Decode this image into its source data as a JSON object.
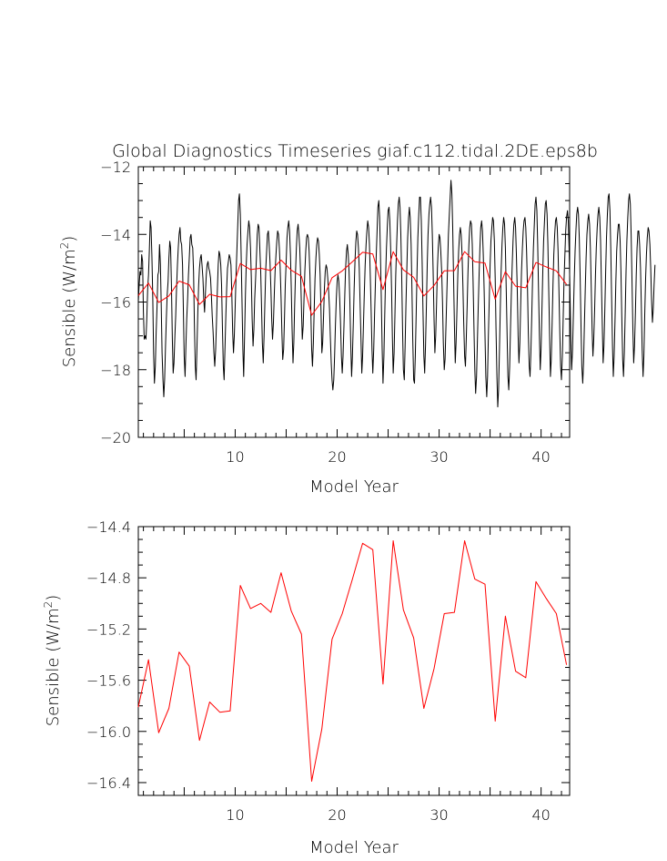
{
  "title": "Global Diagnostics Timeseries giaf.c112.tidal.2DE.eps8b",
  "chart_data": [
    {
      "type": "line",
      "xlabel": "Model Year",
      "ylabel_main": "Sensible (W/m",
      "ylabel_sup": "2",
      "ylabel_end": ")",
      "xlim": [
        0.5,
        42.8
      ],
      "ylim": [
        -20,
        -12
      ],
      "xticks": [
        10,
        20,
        30,
        40
      ],
      "yticks": [
        -20,
        -18,
        -16,
        -14,
        -12
      ],
      "ytick_labels": [
        "−20",
        "−18",
        "−16",
        "−14",
        "−12"
      ],
      "series": [
        {
          "color": "#000000",
          "description": "monthly",
          "x_start": 0.5,
          "x_step": 0.0833333,
          "values": [
            -16.0,
            -15.5,
            -15.1,
            -15.2,
            -14.6,
            -14.8,
            -16.3,
            -17.1,
            -17.0,
            -17.1,
            -16.5,
            -15.6,
            -15.2,
            -14.5,
            -13.6,
            -13.8,
            -14.6,
            -15.9,
            -17.5,
            -18.4,
            -17.9,
            -16.9,
            -16.2,
            -15.2,
            -15.1,
            -14.3,
            -14.9,
            -16.1,
            -17.5,
            -18.3,
            -18.8,
            -18.3,
            -17.3,
            -16.5,
            -15.8,
            -15.4,
            -14.7,
            -14.2,
            -14.4,
            -15.5,
            -17.1,
            -18.1,
            -17.8,
            -17.0,
            -16.4,
            -15.6,
            -14.9,
            -14.4,
            -14.0,
            -13.8,
            -14.2,
            -14.3,
            -14.9,
            -16.2,
            -17.6,
            -18.2,
            -17.3,
            -16.5,
            -15.9,
            -15.2,
            -14.7,
            -14.1,
            -14.0,
            -14.3,
            -14.4,
            -15.1,
            -16.6,
            -17.9,
            -18.3,
            -17.4,
            -16.3,
            -15.5,
            -15.0,
            -14.7,
            -14.6,
            -14.9,
            -15.3,
            -15.9,
            -16.3,
            -15.7,
            -15.2,
            -14.9,
            -14.8,
            -15.0,
            -15.1,
            -15.3,
            -15.8,
            -16.4,
            -16.9,
            -17.5,
            -17.9,
            -17.4,
            -16.6,
            -15.7,
            -14.9,
            -14.5,
            -14.6,
            -14.9,
            -15.5,
            -16.7,
            -17.9,
            -18.3,
            -17.4,
            -16.4,
            -15.6,
            -15.0,
            -14.8,
            -14.6,
            -14.7,
            -14.9,
            -15.7,
            -16.9,
            -17.5,
            -17.0,
            -16.1,
            -15.2,
            -14.5,
            -13.7,
            -13.0,
            -12.8,
            -13.4,
            -14.6,
            -15.9,
            -17.4,
            -18.2,
            -17.1,
            -15.8,
            -14.9,
            -14.3,
            -13.9,
            -13.6,
            -13.8,
            -14.4,
            -15.3,
            -16.5,
            -17.3,
            -16.8,
            -15.9,
            -15.3,
            -14.7,
            -14.0,
            -13.7,
            -13.8,
            -14.4,
            -15.1,
            -16.1,
            -17.2,
            -17.8,
            -17.0,
            -16.0,
            -15.0,
            -14.5,
            -14.0,
            -13.9,
            -14.3,
            -14.8,
            -15.6,
            -16.5,
            -17.1,
            -16.6,
            -15.8,
            -15.1,
            -14.6,
            -14.2,
            -13.9,
            -14.0,
            -14.4,
            -15.0,
            -15.9,
            -16.9,
            -17.7,
            -17.4,
            -16.5,
            -15.5,
            -14.8,
            -14.1,
            -13.8,
            -13.6,
            -13.9,
            -14.6,
            -15.6,
            -16.8,
            -17.8,
            -17.2,
            -16.1,
            -15.1,
            -14.4,
            -13.9,
            -13.7,
            -14.0,
            -14.4,
            -15.2,
            -16.2,
            -17.1,
            -16.7,
            -15.9,
            -15.1,
            -14.5,
            -14.1,
            -14.0,
            -14.1,
            -14.5,
            -15.2,
            -16.3,
            -17.4,
            -17.9,
            -17.2,
            -16.2,
            -15.3,
            -14.7,
            -14.3,
            -14.1,
            -14.2,
            -14.6,
            -15.2,
            -16.3,
            -17.5,
            -17.2,
            -16.4,
            -15.6,
            -15.1,
            -14.9,
            -15.0,
            -15.3,
            -15.7,
            -16.2,
            -17.0,
            -17.8,
            -18.3,
            -18.6,
            -18.3,
            -17.6,
            -16.7,
            -15.9,
            -15.4,
            -15.2,
            -15.4,
            -15.9,
            -16.6,
            -17.6,
            -18.1,
            -17.6,
            -16.7,
            -15.8,
            -15.0,
            -14.5,
            -14.3,
            -14.6,
            -15.1,
            -16.0,
            -17.3,
            -18.2,
            -17.6,
            -16.6,
            -15.6,
            -14.8,
            -14.2,
            -13.9,
            -14.0,
            -14.4,
            -15.0,
            -16.0,
            -17.1,
            -18.1,
            -17.6,
            -16.6,
            -15.7,
            -14.9,
            -14.3,
            -13.9,
            -13.6,
            -13.8,
            -14.3,
            -15.2,
            -16.3,
            -17.4,
            -18.1,
            -17.4,
            -16.4,
            -15.5,
            -14.6,
            -13.9,
            -13.2,
            -13.0,
            -13.5,
            -14.6,
            -16.0,
            -17.4,
            -18.4,
            -17.6,
            -16.4,
            -15.3,
            -14.4,
            -13.8,
            -13.3,
            -13.2,
            -13.6,
            -14.4,
            -15.6,
            -17.0,
            -18.1,
            -17.5,
            -16.4,
            -15.2,
            -14.3,
            -13.6,
            -13.1,
            -12.9,
            -13.2,
            -14.0,
            -15.3,
            -16.8,
            -18.0,
            -18.3,
            -17.3,
            -16.1,
            -15.0,
            -14.1,
            -13.5,
            -13.2,
            -13.5,
            -14.3,
            -15.6,
            -17.1,
            -18.3,
            -18.4,
            -17.6,
            -16.3,
            -15.1,
            -14.1,
            -13.4,
            -12.9,
            -12.9,
            -13.6,
            -14.8,
            -16.2,
            -17.6,
            -18.1,
            -17.3,
            -16.1,
            -14.9,
            -14.0,
            -13.4,
            -13.1,
            -12.9,
            -13.2,
            -14.0,
            -15.1,
            -16.5,
            -17.5,
            -17.0,
            -16.0,
            -15.0,
            -14.4,
            -14.0,
            -14.1,
            -14.5,
            -15.1,
            -16.0,
            -17.2,
            -18.0,
            -17.7,
            -16.8,
            -15.8,
            -14.9,
            -14.0,
            -13.4,
            -12.9,
            -12.4,
            -12.8,
            -13.8,
            -15.2,
            -16.7,
            -17.8,
            -17.2,
            -16.2,
            -15.2,
            -14.5,
            -14.0,
            -13.8,
            -14.0,
            -14.6,
            -15.5,
            -16.6,
            -17.6,
            -17.9,
            -17.1,
            -16.1,
            -15.1,
            -14.3,
            -13.8,
            -13.6,
            -13.7,
            -14.3,
            -15.4,
            -16.8,
            -18.0,
            -18.7,
            -18.2,
            -17.2,
            -16.2,
            -15.2,
            -14.4,
            -13.8,
            -13.6,
            -13.9,
            -14.6,
            -15.7,
            -17.0,
            -18.2,
            -18.8,
            -18.2,
            -17.0,
            -15.9,
            -14.9,
            -14.2,
            -13.8,
            -13.5,
            -13.6,
            -14.2,
            -15.3,
            -16.8,
            -18.2,
            -19.1,
            -18.6,
            -17.4,
            -16.2,
            -15.1,
            -14.3,
            -13.8,
            -13.5,
            -13.7,
            -14.4,
            -15.6,
            -17.0,
            -18.2,
            -18.6,
            -17.9,
            -16.8,
            -15.8,
            -14.9,
            -14.2,
            -13.7,
            -13.5,
            -13.8,
            -14.6,
            -15.7,
            -17.0,
            -17.8,
            -17.2,
            -16.1,
            -15.1,
            -14.4,
            -13.9,
            -13.6,
            -13.5,
            -13.8,
            -14.5,
            -15.6,
            -16.9,
            -17.9,
            -18.2,
            -17.5,
            -16.4,
            -15.3,
            -14.4,
            -13.7,
            -13.1,
            -12.9,
            -13.3,
            -14.3,
            -15.6,
            -17.0,
            -18.0,
            -17.4,
            -16.2,
            -15.1,
            -14.2,
            -13.6,
            -13.1,
            -13.0,
            -13.4,
            -14.3,
            -15.6,
            -17.0,
            -18.2,
            -17.7,
            -16.6,
            -15.5,
            -14.6,
            -14.0,
            -13.6,
            -13.5,
            -13.8,
            -14.5,
            -15.6,
            -16.9,
            -17.9,
            -18.3,
            -17.6,
            -16.5,
            -15.4,
            -14.6,
            -13.9,
            -13.5,
            -13.3,
            -13.6,
            -14.4,
            -15.7,
            -17.1,
            -18.0,
            -17.4,
            -16.4,
            -15.4,
            -14.5,
            -13.9,
            -13.4,
            -13.2,
            -13.4,
            -14.1,
            -15.3,
            -16.7,
            -17.9,
            -18.4,
            -17.8,
            -16.7,
            -15.6,
            -14.7,
            -14.0,
            -13.6,
            -13.4,
            -13.7,
            -14.4,
            -15.5,
            -16.8,
            -17.6,
            -17.1,
            -16.2,
            -15.2,
            -14.4,
            -13.8,
            -13.4,
            -13.2,
            -13.5,
            -14.2,
            -15.4,
            -16.7,
            -17.8,
            -17.3,
            -16.2,
            -15.1,
            -14.1,
            -13.4,
            -12.9,
            -12.8,
            -13.3,
            -14.4,
            -15.8,
            -17.3,
            -18.2,
            -17.6,
            -16.5,
            -15.4,
            -14.5,
            -14.0,
            -13.7,
            -13.7,
            -14.2,
            -15.1,
            -16.4,
            -17.7,
            -18.2,
            -17.5,
            -16.3,
            -15.1,
            -14.2,
            -13.5,
            -13.0,
            -12.8,
            -13.1,
            -14.0,
            -15.3,
            -16.8,
            -17.8,
            -17.3,
            -16.3,
            -15.2,
            -14.4,
            -13.9,
            -13.9,
            -14.3,
            -15.0,
            -16.1,
            -17.4,
            -18.2,
            -17.6,
            -16.4,
            -15.3,
            -14.6,
            -14.1,
            -13.8,
            -13.9,
            -14.3,
            -15.0,
            -15.9,
            -16.6,
            -16.2,
            -15.5,
            -14.9
          ]
        },
        {
          "color": "#ff0000",
          "description": "annual",
          "x": [
            0.5,
            1.5,
            2.5,
            3.5,
            4.5,
            5.5,
            6.5,
            7.5,
            8.5,
            9.5,
            10.5,
            11.5,
            12.5,
            13.5,
            14.5,
            15.5,
            16.5,
            17.5,
            18.5,
            19.5,
            20.5,
            21.5,
            22.5,
            23.5,
            24.5,
            25.5,
            26.5,
            27.5,
            28.5,
            29.5,
            30.5,
            31.5,
            32.5,
            33.5,
            34.5,
            35.5,
            36.5,
            37.5,
            38.5,
            39.5,
            40.5,
            41.5,
            42.5
          ],
          "values": [
            -15.81,
            -15.44,
            -16.01,
            -15.82,
            -15.38,
            -15.49,
            -16.07,
            -15.77,
            -15.85,
            -15.84,
            -14.86,
            -15.04,
            -15.0,
            -15.07,
            -14.76,
            -15.06,
            -15.24,
            -16.39,
            -15.98,
            -15.28,
            -15.08,
            -14.81,
            -14.53,
            -14.58,
            -15.63,
            -14.51,
            -15.05,
            -15.27,
            -15.82,
            -15.51,
            -15.08,
            -15.07,
            -14.51,
            -14.81,
            -14.85,
            -15.92,
            -15.1,
            -15.53,
            -15.58,
            -14.83,
            -14.96,
            -15.08,
            -15.48
          ]
        }
      ]
    },
    {
      "type": "line",
      "xlabel": "Model Year",
      "ylabel_main": "Sensible (W/m",
      "ylabel_sup": "2",
      "ylabel_end": ")",
      "xlim": [
        0.5,
        42.8
      ],
      "ylim": [
        -16.5,
        -14.4
      ],
      "xticks": [
        10,
        20,
        30,
        40
      ],
      "yticks": [
        -16.4,
        -16.0,
        -15.6,
        -15.2,
        -14.8,
        -14.4
      ],
      "ytick_labels": [
        "−16.4",
        "−16.0",
        "−15.6",
        "−15.2",
        "−14.8",
        "−14.4"
      ],
      "series": [
        {
          "color": "#ff0000",
          "description": "annual",
          "x": [
            0.5,
            1.5,
            2.5,
            3.5,
            4.5,
            5.5,
            6.5,
            7.5,
            8.5,
            9.5,
            10.5,
            11.5,
            12.5,
            13.5,
            14.5,
            15.5,
            16.5,
            17.5,
            18.5,
            19.5,
            20.5,
            21.5,
            22.5,
            23.5,
            24.5,
            25.5,
            26.5,
            27.5,
            28.5,
            29.5,
            30.5,
            31.5,
            32.5,
            33.5,
            34.5,
            35.5,
            36.5,
            37.5,
            38.5,
            39.5,
            40.5,
            41.5,
            42.5
          ],
          "values": [
            -15.81,
            -15.44,
            -16.01,
            -15.82,
            -15.38,
            -15.49,
            -16.07,
            -15.77,
            -15.85,
            -15.84,
            -14.86,
            -15.04,
            -15.0,
            -15.07,
            -14.76,
            -15.06,
            -15.24,
            -16.39,
            -15.98,
            -15.28,
            -15.08,
            -14.81,
            -14.53,
            -14.58,
            -15.63,
            -14.51,
            -15.05,
            -15.27,
            -15.82,
            -15.51,
            -15.08,
            -15.07,
            -14.51,
            -14.81,
            -14.85,
            -15.92,
            -15.1,
            -15.53,
            -15.58,
            -14.83,
            -14.96,
            -15.08,
            -15.48
          ]
        }
      ]
    }
  ]
}
